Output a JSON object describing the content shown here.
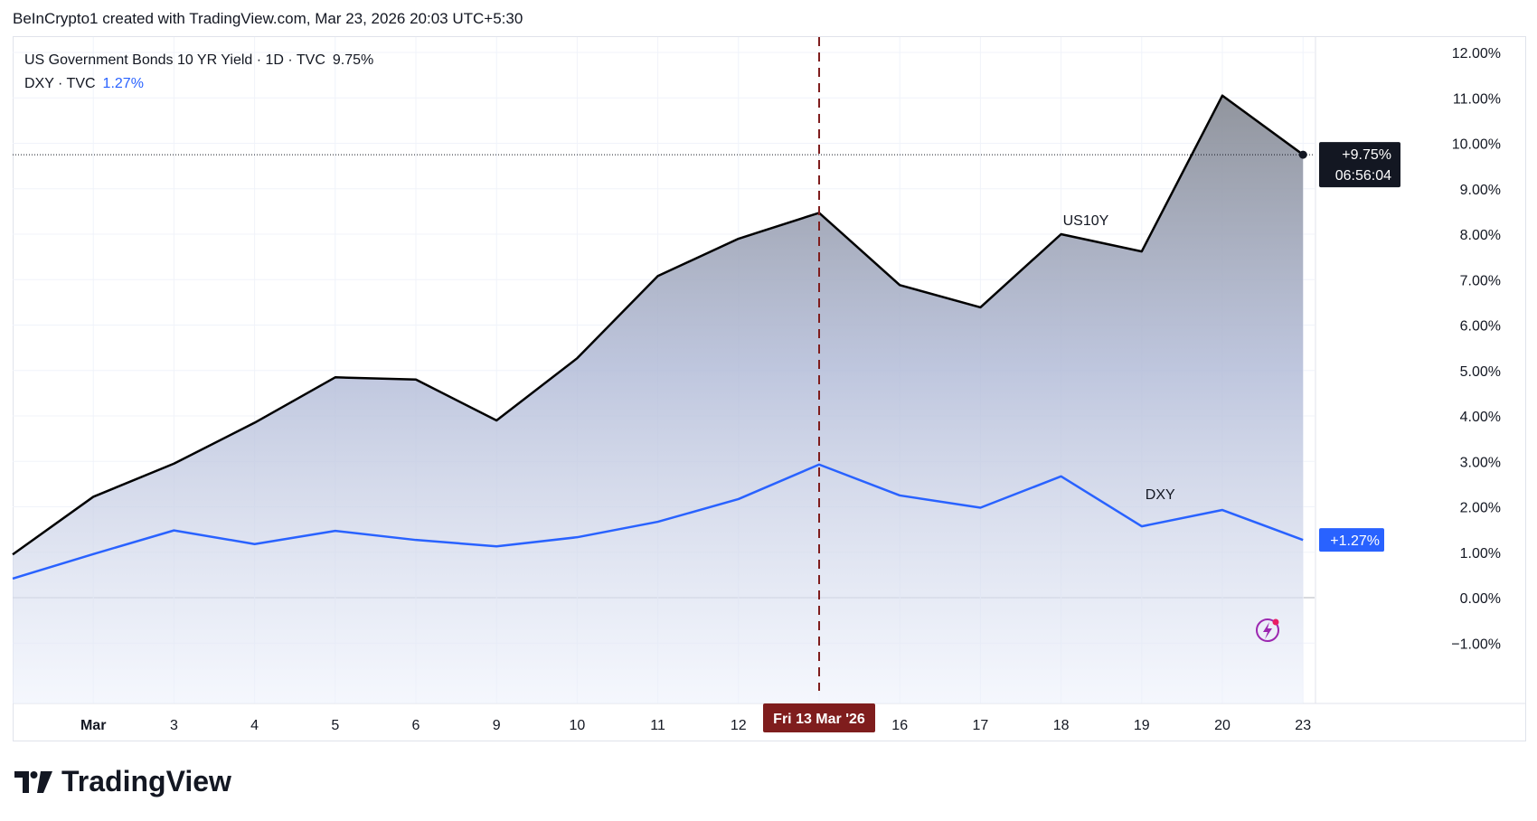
{
  "header": {
    "text": "BeInCrypto1 created with TradingView.com, Mar 23, 2026 20:03 UTC+5:30"
  },
  "legend": {
    "us10y": {
      "label": "US Government Bonds 10 YR Yield · 1D · TVC",
      "value": "9.75%"
    },
    "dxy": {
      "label": "DXY · TVC",
      "value": "1.27%"
    }
  },
  "badges": {
    "us10y_value": "+9.75%",
    "us10y_countdown": "06:56:04",
    "dxy_value": "+1.27%",
    "crosshair_date": "Fri 13 Mar '26"
  },
  "footer": {
    "brand": "TradingView"
  },
  "colors": {
    "us10y_line": "#000000",
    "dxy_line": "#2962ff",
    "crosshair": "#7f1d1d",
    "badge_dark": "#131722",
    "badge_blue": "#2962ff"
  },
  "chart_data": {
    "type": "area",
    "categories": [
      "",
      "Mar",
      "3",
      "4",
      "5",
      "6",
      "9",
      "10",
      "11",
      "12",
      "13",
      "16",
      "17",
      "18",
      "19",
      "20",
      "23"
    ],
    "series": [
      {
        "name": "US10Y",
        "values": [
          0.95,
          2.22,
          2.95,
          3.85,
          4.85,
          4.8,
          3.9,
          5.27,
          7.08,
          7.9,
          8.47,
          6.88,
          6.39,
          8.0,
          7.62,
          11.05,
          9.75
        ]
      },
      {
        "name": "DXY",
        "values": [
          0.42,
          0.96,
          1.48,
          1.18,
          1.47,
          1.27,
          1.13,
          1.33,
          1.67,
          2.17,
          2.93,
          2.25,
          1.98,
          2.67,
          1.57,
          1.93,
          1.27
        ]
      }
    ],
    "yticks": [
      "12.00%",
      "11.00%",
      "10.00%",
      "9.00%",
      "8.00%",
      "7.00%",
      "6.00%",
      "5.00%",
      "4.00%",
      "3.00%",
      "2.00%",
      "1.00%",
      "0.00%",
      "−1.00%"
    ],
    "ylim": [
      -1,
      12
    ],
    "crosshair_index": 10,
    "xlabel": "",
    "ylabel": "",
    "grid": true,
    "y_axis_side": "right"
  }
}
